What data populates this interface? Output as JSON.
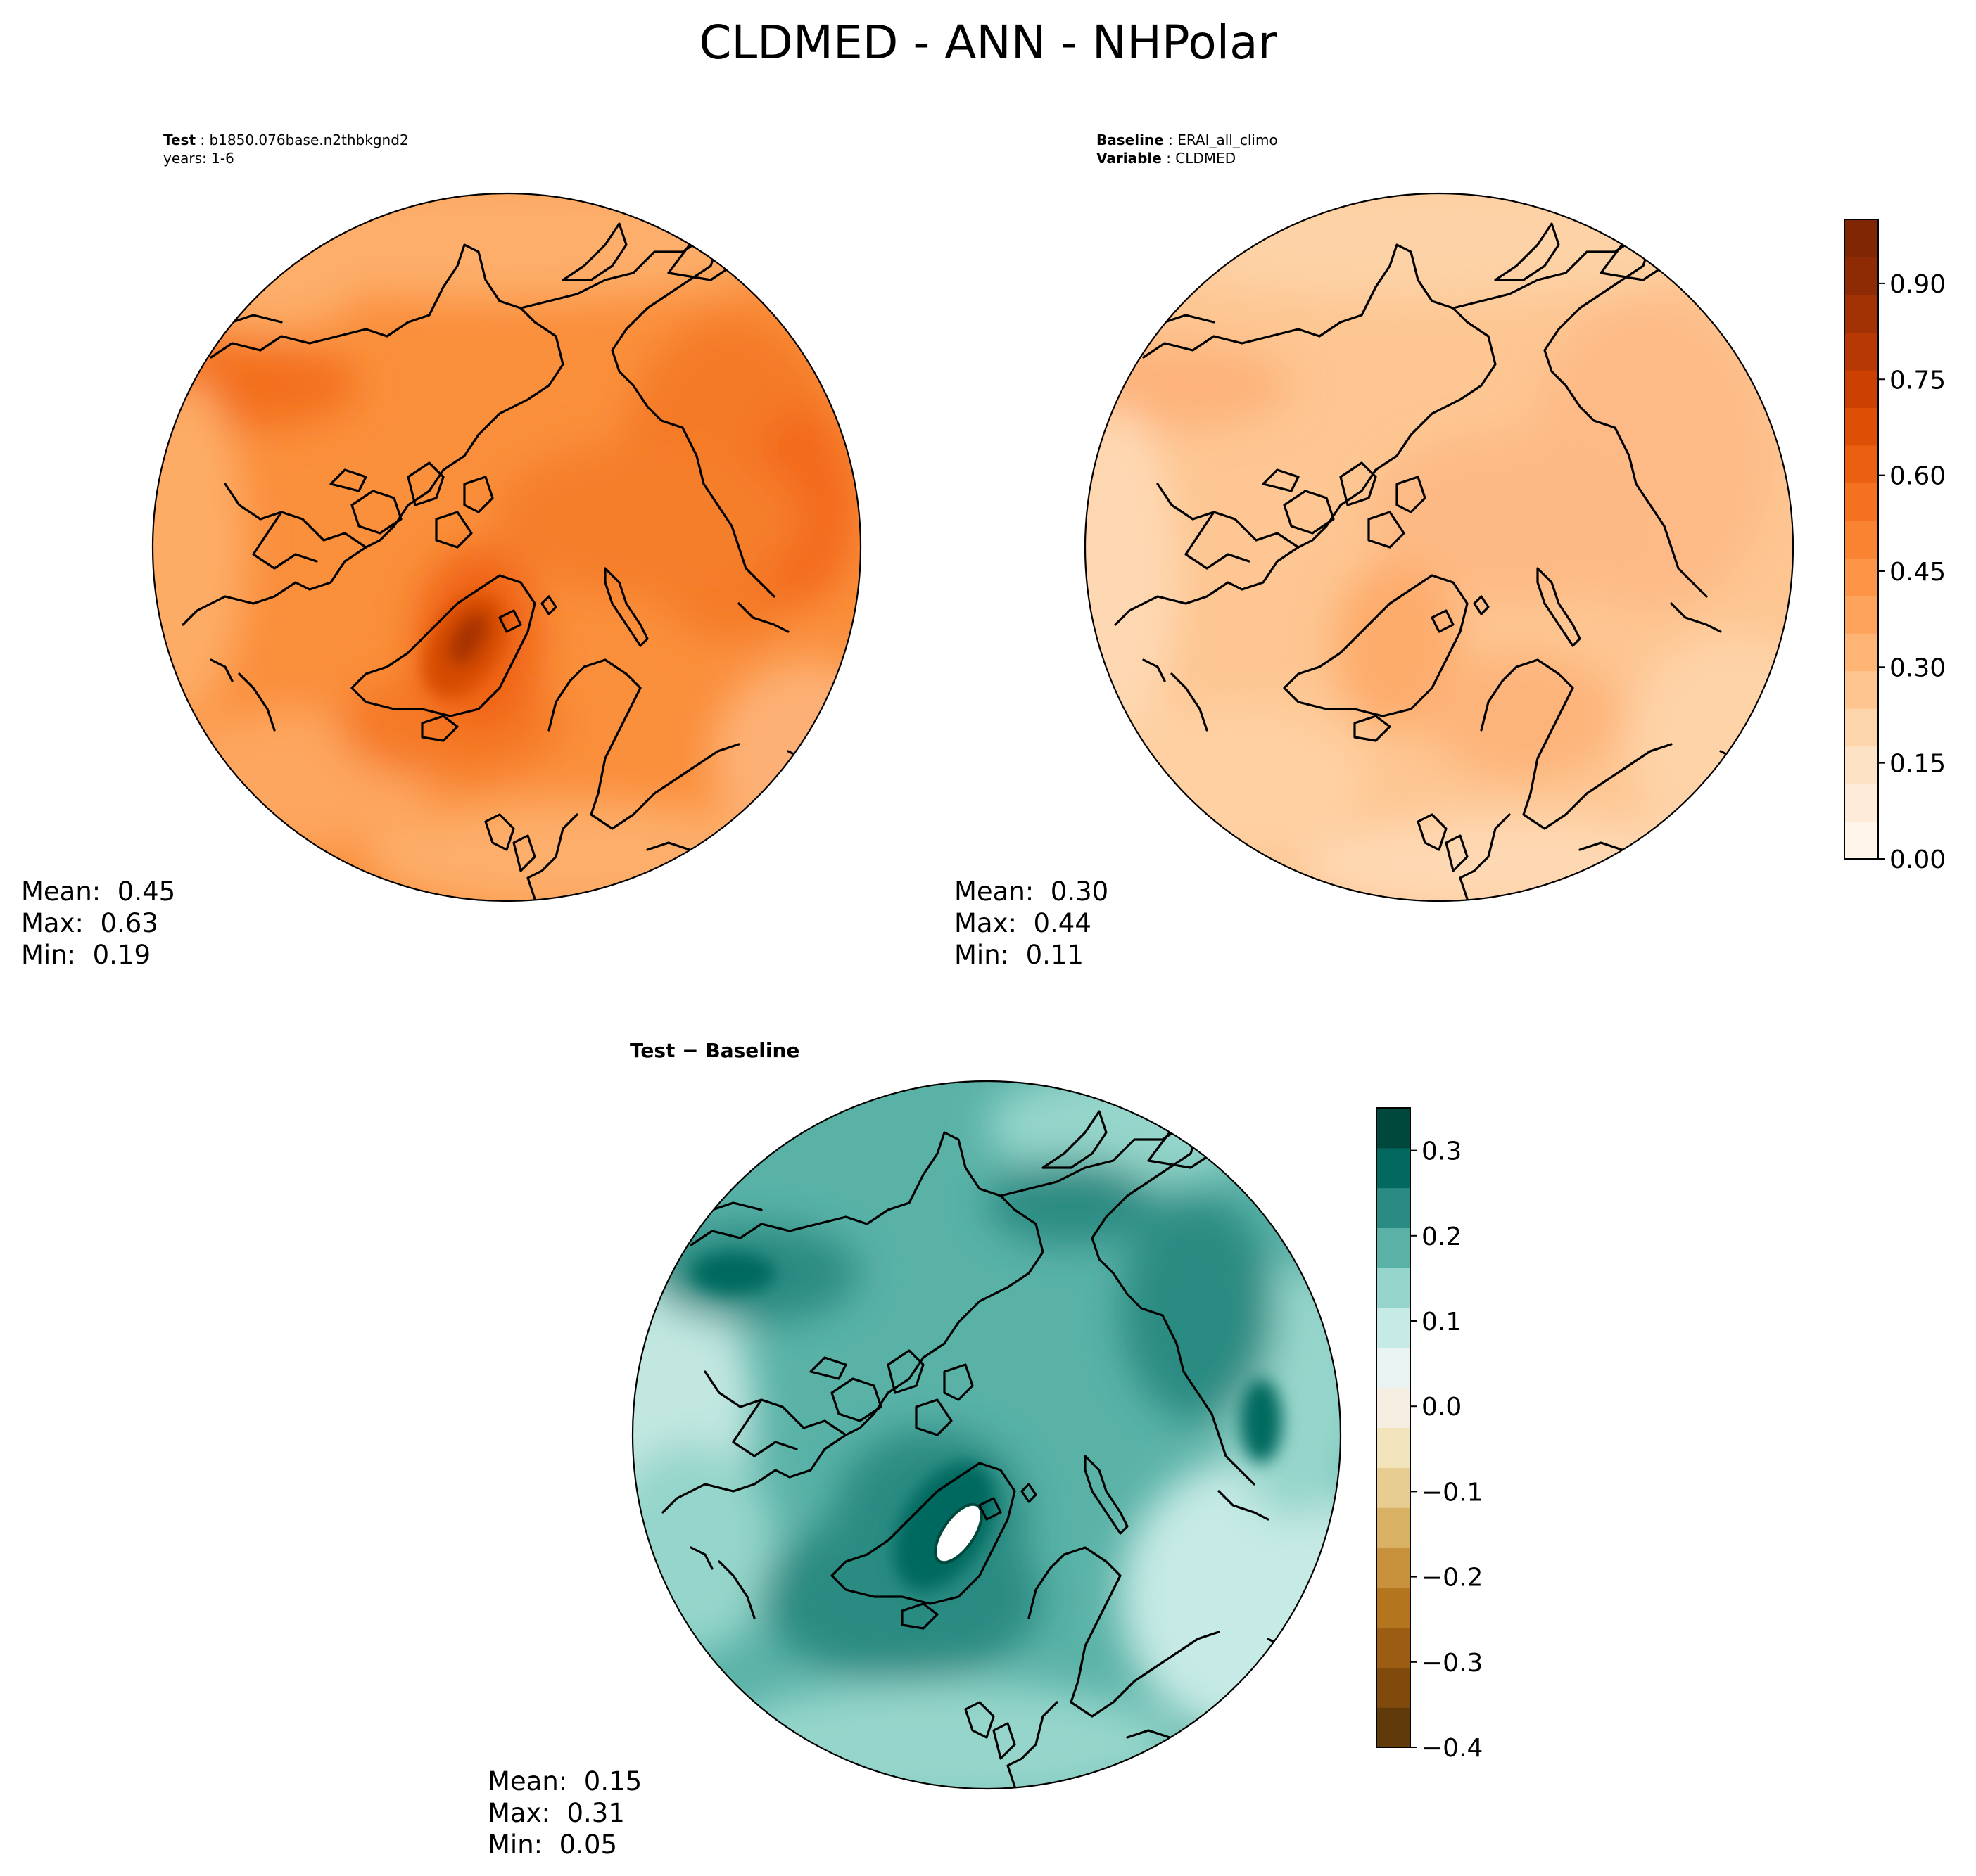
{
  "figure": {
    "title": "CLDMED - ANN - NHPolar"
  },
  "panels": [
    {
      "id": "test",
      "meta_lines": [
        {
          "key": "Test",
          "value": "b1850.076base.n2thbkgnd2"
        },
        {
          "key": "",
          "value": "years: 1-6"
        }
      ],
      "stats": {
        "mean": "Mean:  0.45",
        "max": "Max:  0.63",
        "min": "Min:  0.19"
      },
      "field": {
        "mean": 0.45,
        "max": 0.63,
        "min": 0.19
      },
      "colormap": "Oranges"
    },
    {
      "id": "baseline",
      "meta_lines": [
        {
          "key": "Baseline",
          "value": "ERAI_all_climo"
        },
        {
          "key": "Variable",
          "value": "CLDMED"
        }
      ],
      "stats": {
        "mean": "Mean:  0.30",
        "max": "Max:  0.44",
        "min": "Min:  0.11"
      },
      "field": {
        "mean": 0.3,
        "max": 0.44,
        "min": 0.11
      },
      "colormap": "Oranges"
    },
    {
      "id": "difference",
      "title_bold": "Test − Baseline",
      "stats": {
        "mean": "Mean:  0.15",
        "max": "Max:  0.31",
        "min": "Min:  0.05"
      },
      "field": {
        "mean": 0.15,
        "max": 0.31,
        "min": 0.05
      },
      "colormap": "BrBG"
    }
  ],
  "colorbars": {
    "orange": {
      "range": [
        0.0,
        1.0
      ],
      "ticks": [
        "0.00",
        "0.15",
        "0.30",
        "0.45",
        "0.60",
        "0.75",
        "0.90"
      ],
      "tick_values": [
        0.0,
        0.15,
        0.3,
        0.45,
        0.6,
        0.75,
        0.9
      ],
      "colors": [
        "#fff5eb",
        "#feecd9",
        "#fee2c6",
        "#fdd5ab",
        "#fdc590",
        "#fdb474",
        "#fda35c",
        "#fd9446",
        "#fa8331",
        "#f3711f",
        "#ea6010",
        "#dd4f05",
        "#cc4101",
        "#b73803",
        "#a23103",
        "#8f2b04",
        "#7f2704"
      ]
    },
    "diff": {
      "range": [
        -0.4,
        0.35
      ],
      "ticks": [
        "−0.4",
        "−0.3",
        "−0.2",
        "−0.1",
        "0.0",
        "0.1",
        "0.2",
        "0.3"
      ],
      "tick_values": [
        -0.4,
        -0.3,
        -0.2,
        -0.1,
        0.0,
        0.1,
        0.2,
        0.3
      ],
      "colors": [
        "#603a0b",
        "#7f4a0c",
        "#9a5d12",
        "#b3761f",
        "#c8913b",
        "#d9b164",
        "#e8cd93",
        "#f2e4bb",
        "#f6efe1",
        "#e9f3f1",
        "#c6eae5",
        "#95d5cb",
        "#5ab2a7",
        "#2a8b82",
        "#03695e",
        "#00483c"
      ]
    }
  }
}
